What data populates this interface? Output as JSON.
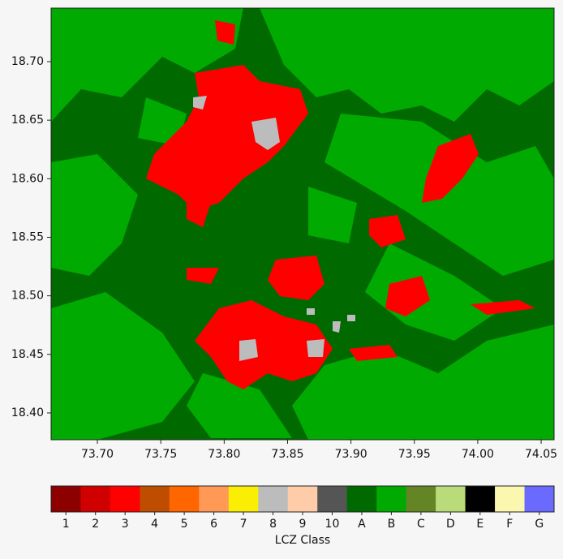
{
  "map": {
    "xlim": [
      73.6635,
      74.0602
    ],
    "ylim": [
      18.3771,
      18.7457
    ],
    "xticks": [
      {
        "value": 73.7,
        "label": "73.70"
      },
      {
        "value": 73.75,
        "label": "73.75"
      },
      {
        "value": 73.8,
        "label": "73.80"
      },
      {
        "value": 73.85,
        "label": "73.85"
      },
      {
        "value": 73.9,
        "label": "73.90"
      },
      {
        "value": 73.95,
        "label": "73.95"
      },
      {
        "value": 74.0,
        "label": "74.00"
      },
      {
        "value": 74.05,
        "label": "74.05"
      }
    ],
    "yticks": [
      {
        "value": 18.4,
        "label": "18.40"
      },
      {
        "value": 18.45,
        "label": "18.45"
      },
      {
        "value": 18.5,
        "label": "18.50"
      },
      {
        "value": 18.55,
        "label": "18.55"
      },
      {
        "value": 18.6,
        "label": "18.60"
      },
      {
        "value": 18.65,
        "label": "18.65"
      },
      {
        "value": 18.7,
        "label": "18.70"
      }
    ],
    "colorbar": {
      "label": "LCZ Class",
      "classes": [
        {
          "name": "1",
          "color": "#8c0000"
        },
        {
          "name": "2",
          "color": "#d10000"
        },
        {
          "name": "3",
          "color": "#ff0000"
        },
        {
          "name": "4",
          "color": "#bf4d00"
        },
        {
          "name": "5",
          "color": "#ff6600"
        },
        {
          "name": "6",
          "color": "#ff9955"
        },
        {
          "name": "7",
          "color": "#faee05"
        },
        {
          "name": "8",
          "color": "#bcbcbc"
        },
        {
          "name": "9",
          "color": "#ffccaa"
        },
        {
          "name": "10",
          "color": "#555555"
        },
        {
          "name": "A",
          "color": "#006a00"
        },
        {
          "name": "B",
          "color": "#00aa00"
        },
        {
          "name": "C",
          "color": "#648525"
        },
        {
          "name": "D",
          "color": "#b9db79"
        },
        {
          "name": "E",
          "color": "#000000"
        },
        {
          "name": "F",
          "color": "#fbf7ae"
        },
        {
          "name": "G",
          "color": "#6a6aff"
        }
      ]
    }
  }
}
